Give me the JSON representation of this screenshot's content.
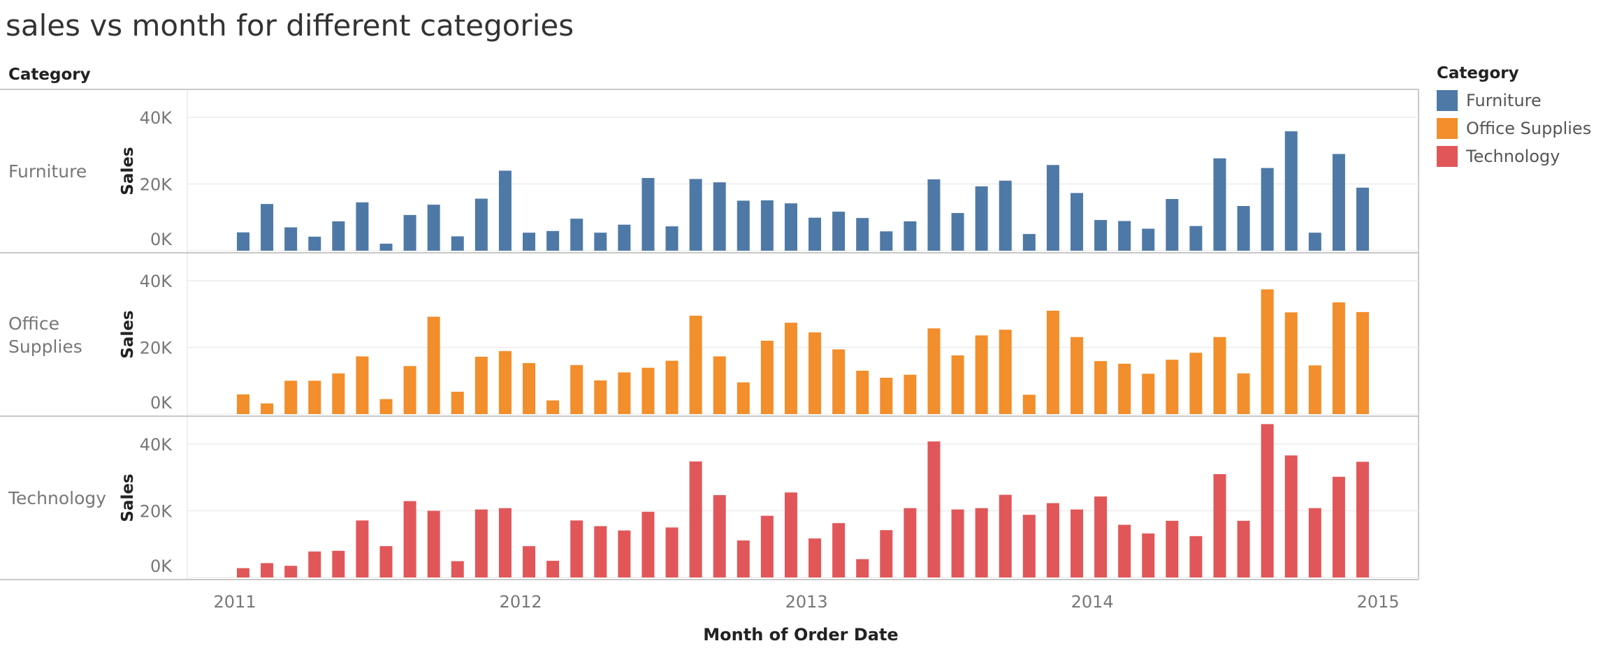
{
  "title": "sales vs month for different categories",
  "row_header": "Category",
  "legend": {
    "title": "Category",
    "items": [
      {
        "label": "Furniture",
        "color": "#4e79a7"
      },
      {
        "label": "Office Supplies",
        "color": "#f28e2b"
      },
      {
        "label": "Technology",
        "color": "#e15759"
      }
    ]
  },
  "chart_data": {
    "type": "bar",
    "xlabel": "Month of Order Date",
    "ylabel": "Sales",
    "x_ticks": [
      "2011",
      "2012",
      "2013",
      "2014",
      "2015"
    ],
    "y_ticks": [
      "0K",
      "20K",
      "40K"
    ],
    "ylim": [
      0,
      40000
    ],
    "x_start": "2011-01",
    "x_end": "2014-12",
    "grid": true,
    "legend_position": "right",
    "panels": [
      {
        "name": "Furniture",
        "color": "#4e79a7",
        "values": [
          5500,
          14000,
          7000,
          4200,
          8800,
          14500,
          2100,
          10700,
          13800,
          4300,
          15600,
          24000,
          5400,
          5900,
          9600,
          5400,
          7800,
          21800,
          7300,
          21500,
          20500,
          15000,
          15100,
          14200,
          9900,
          11700,
          9800,
          5800,
          8800,
          21400,
          11300,
          19300,
          21000,
          5000,
          25700,
          17300,
          9200,
          8900,
          6600,
          15500,
          7400,
          27700,
          13400,
          24800,
          35800,
          5400,
          29000,
          18900
        ]
      },
      {
        "name": "Office Supplies",
        "color": "#f28e2b",
        "values": [
          5900,
          3200,
          10000,
          10000,
          12200,
          17300,
          4500,
          14400,
          29200,
          6700,
          17200,
          18900,
          15300,
          4100,
          14700,
          10100,
          12500,
          13900,
          16000,
          29500,
          17300,
          9500,
          22000,
          27400,
          24500,
          19400,
          13000,
          10900,
          11800,
          25700,
          17600,
          23600,
          25300,
          5800,
          31000,
          23100,
          15900,
          15100,
          12100,
          16300,
          18400,
          23100,
          12200,
          37400,
          30500,
          14600,
          33500,
          30600
        ]
      },
      {
        "name": "Technology",
        "color": "#e15759",
        "values": [
          2800,
          4300,
          3500,
          7800,
          8000,
          17100,
          9400,
          22900,
          20000,
          4900,
          20400,
          20800,
          9400,
          5000,
          17100,
          15400,
          14100,
          19700,
          15000,
          34800,
          24700,
          11100,
          18500,
          25500,
          11700,
          16300,
          5500,
          14200,
          20800,
          40800,
          20400,
          20800,
          24800,
          18800,
          22300,
          20400,
          24300,
          15800,
          13200,
          17000,
          12400,
          31000,
          17000,
          46000,
          36600,
          20800,
          30200,
          34700
        ]
      }
    ]
  }
}
